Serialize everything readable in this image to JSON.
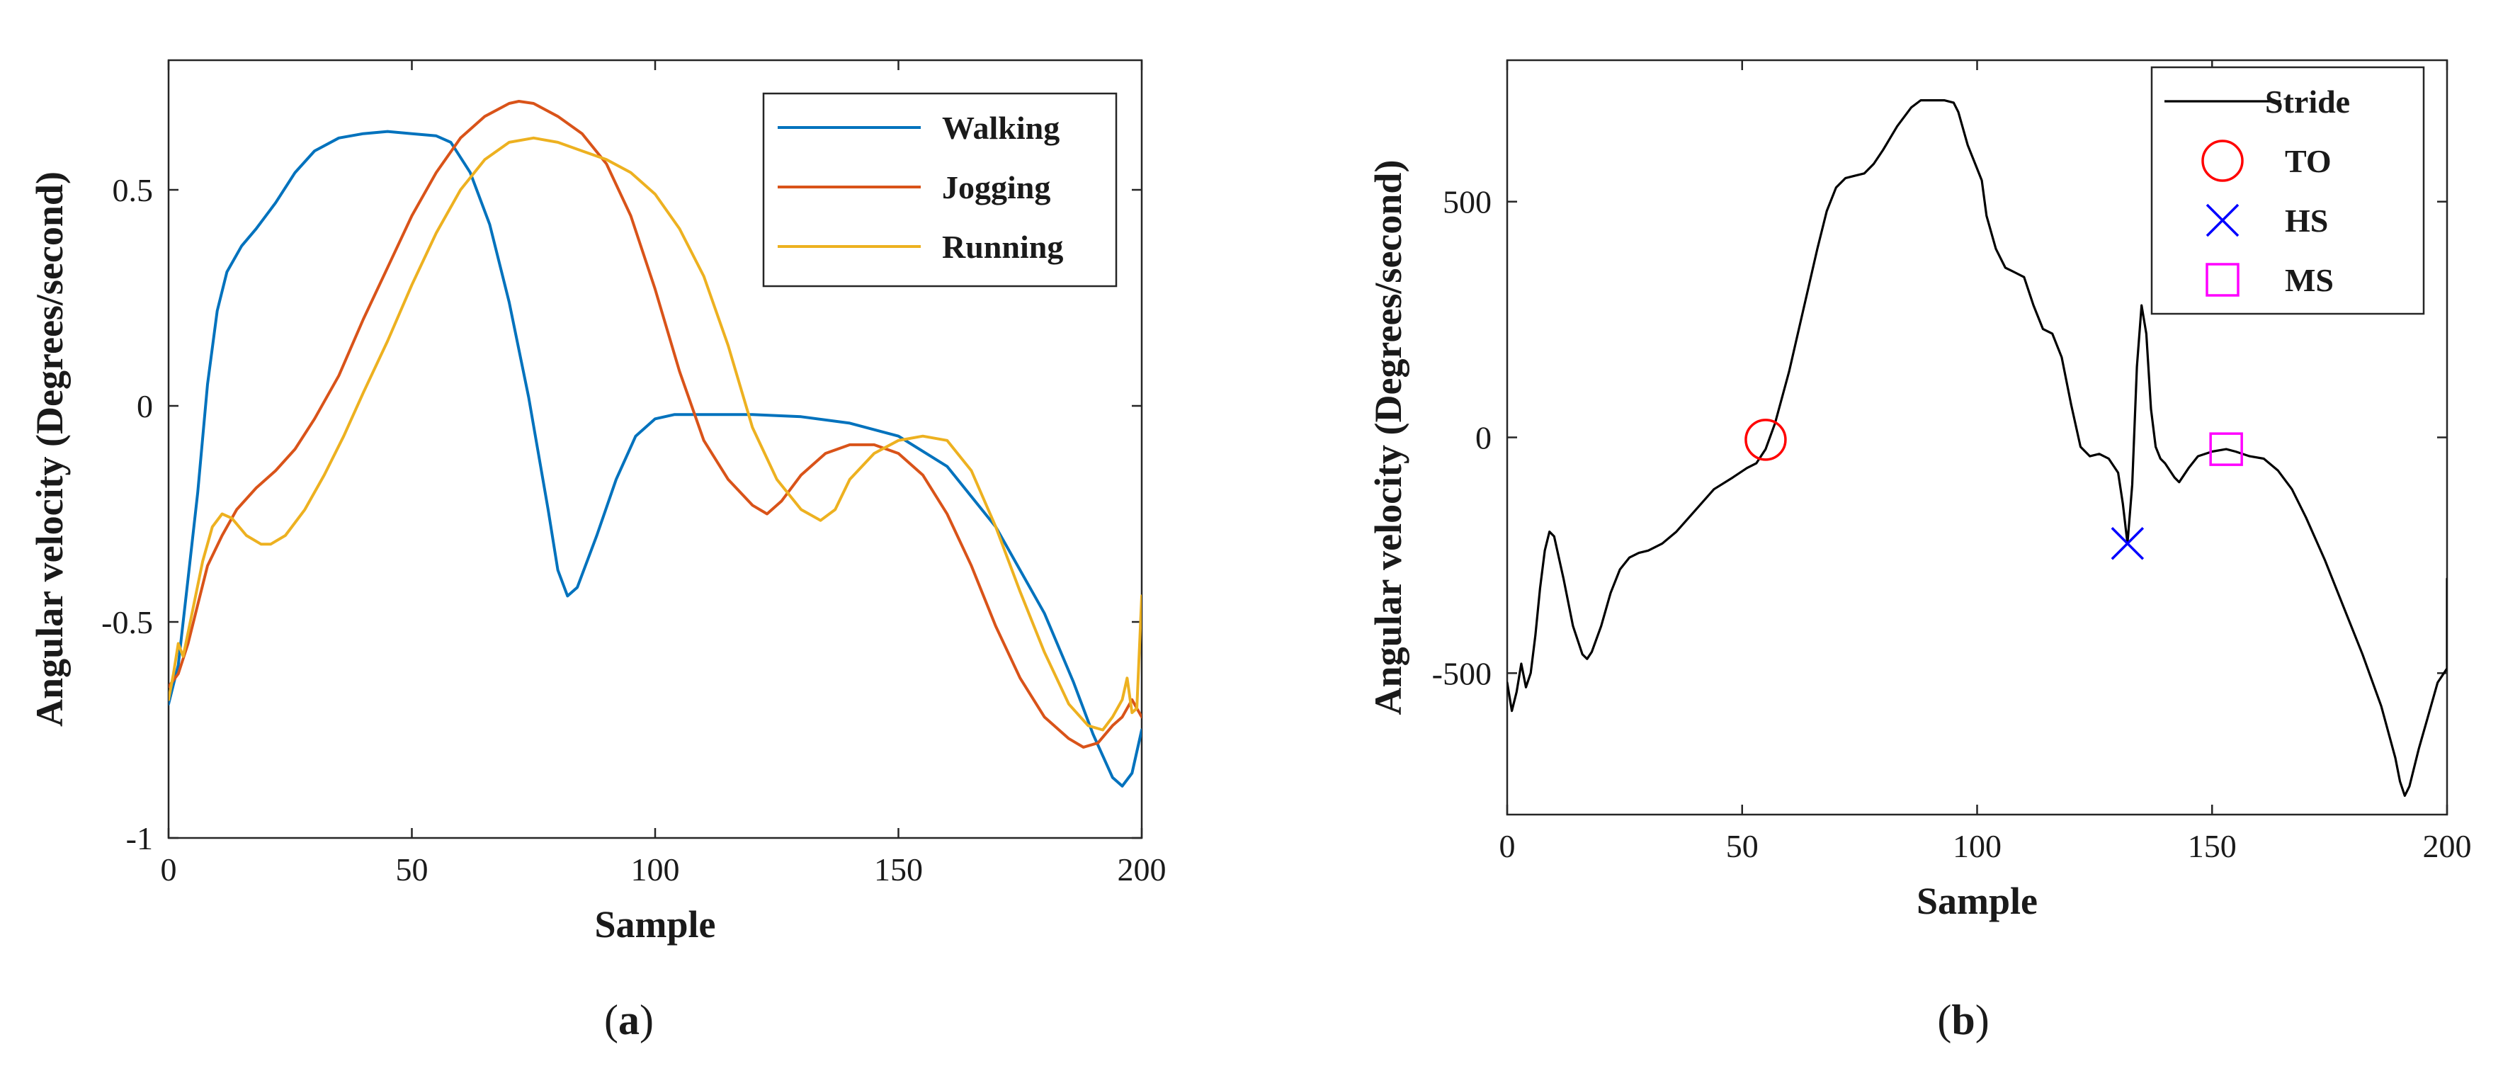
{
  "chart_data": [
    {
      "type": "line",
      "panel_label": "a",
      "title": "",
      "xlabel": "Sample",
      "ylabel": "Angular velocity (Degrees/second)",
      "xlim": [
        0,
        200
      ],
      "ylim": [
        -1,
        0.8
      ],
      "xticks": [
        0,
        50,
        100,
        150,
        200
      ],
      "xtick_labels": [
        "0",
        "50",
        "100",
        "150",
        "200"
      ],
      "yticks": [
        -1,
        -0.5,
        0,
        0.5
      ],
      "ytick_labels": [
        "-1",
        "-0.5",
        "0",
        "0.5"
      ],
      "grid": false,
      "legend_position": "top-right",
      "series": [
        {
          "name": "Walking",
          "color": "#0072bd",
          "points": [
            [
              0,
              -0.69
            ],
            [
              2,
              -0.6
            ],
            [
              4,
              -0.4
            ],
            [
              6,
              -0.2
            ],
            [
              8,
              0.05
            ],
            [
              10,
              0.22
            ],
            [
              12,
              0.31
            ],
            [
              15,
              0.37
            ],
            [
              18,
              0.41
            ],
            [
              22,
              0.47
            ],
            [
              26,
              0.54
            ],
            [
              30,
              0.59
            ],
            [
              35,
              0.62
            ],
            [
              40,
              0.63
            ],
            [
              45,
              0.635
            ],
            [
              50,
              0.63
            ],
            [
              55,
              0.625
            ],
            [
              58,
              0.61
            ],
            [
              62,
              0.54
            ],
            [
              66,
              0.42
            ],
            [
              70,
              0.24
            ],
            [
              74,
              0.02
            ],
            [
              78,
              -0.24
            ],
            [
              80,
              -0.38
            ],
            [
              82,
              -0.44
            ],
            [
              84,
              -0.42
            ],
            [
              88,
              -0.3
            ],
            [
              92,
              -0.17
            ],
            [
              96,
              -0.07
            ],
            [
              100,
              -0.03
            ],
            [
              104,
              -0.02
            ],
            [
              110,
              -0.02
            ],
            [
              120,
              -0.02
            ],
            [
              130,
              -0.025
            ],
            [
              140,
              -0.04
            ],
            [
              150,
              -0.07
            ],
            [
              160,
              -0.14
            ],
            [
              170,
              -0.28
            ],
            [
              180,
              -0.48
            ],
            [
              186,
              -0.64
            ],
            [
              190,
              -0.76
            ],
            [
              194,
              -0.86
            ],
            [
              196,
              -0.88
            ],
            [
              198,
              -0.85
            ],
            [
              200,
              -0.75
            ]
          ]
        },
        {
          "name": "Jogging",
          "color": "#d95319",
          "points": [
            [
              0,
              -0.65
            ],
            [
              2,
              -0.62
            ],
            [
              4,
              -0.55
            ],
            [
              6,
              -0.46
            ],
            [
              8,
              -0.37
            ],
            [
              11,
              -0.3
            ],
            [
              14,
              -0.24
            ],
            [
              18,
              -0.19
            ],
            [
              22,
              -0.15
            ],
            [
              26,
              -0.1
            ],
            [
              30,
              -0.03
            ],
            [
              35,
              0.07
            ],
            [
              40,
              0.2
            ],
            [
              45,
              0.32
            ],
            [
              50,
              0.44
            ],
            [
              55,
              0.54
            ],
            [
              60,
              0.62
            ],
            [
              65,
              0.67
            ],
            [
              70,
              0.7
            ],
            [
              72,
              0.705
            ],
            [
              75,
              0.7
            ],
            [
              80,
              0.67
            ],
            [
              85,
              0.63
            ],
            [
              90,
              0.56
            ],
            [
              95,
              0.44
            ],
            [
              100,
              0.27
            ],
            [
              105,
              0.08
            ],
            [
              110,
              -0.08
            ],
            [
              115,
              -0.17
            ],
            [
              120,
              -0.23
            ],
            [
              123,
              -0.25
            ],
            [
              126,
              -0.22
            ],
            [
              130,
              -0.16
            ],
            [
              135,
              -0.11
            ],
            [
              140,
              -0.09
            ],
            [
              145,
              -0.09
            ],
            [
              150,
              -0.11
            ],
            [
              155,
              -0.16
            ],
            [
              160,
              -0.25
            ],
            [
              165,
              -0.37
            ],
            [
              170,
              -0.51
            ],
            [
              175,
              -0.63
            ],
            [
              180,
              -0.72
            ],
            [
              185,
              -0.77
            ],
            [
              188,
              -0.79
            ],
            [
              191,
              -0.78
            ],
            [
              194,
              -0.74
            ],
            [
              196,
              -0.72
            ],
            [
              198,
              -0.68
            ],
            [
              200,
              -0.72
            ]
          ]
        },
        {
          "name": "Running",
          "color": "#edb120",
          "points": [
            [
              0,
              -0.68
            ],
            [
              1,
              -0.62
            ],
            [
              2,
              -0.55
            ],
            [
              3,
              -0.58
            ],
            [
              5,
              -0.47
            ],
            [
              7,
              -0.36
            ],
            [
              9,
              -0.28
            ],
            [
              11,
              -0.25
            ],
            [
              13,
              -0.26
            ],
            [
              16,
              -0.3
            ],
            [
              19,
              -0.32
            ],
            [
              21,
              -0.32
            ],
            [
              24,
              -0.3
            ],
            [
              28,
              -0.24
            ],
            [
              32,
              -0.16
            ],
            [
              36,
              -0.07
            ],
            [
              40,
              0.03
            ],
            [
              45,
              0.15
            ],
            [
              50,
              0.28
            ],
            [
              55,
              0.4
            ],
            [
              60,
              0.5
            ],
            [
              65,
              0.57
            ],
            [
              70,
              0.61
            ],
            [
              75,
              0.62
            ],
            [
              80,
              0.61
            ],
            [
              85,
              0.59
            ],
            [
              90,
              0.57
            ],
            [
              95,
              0.54
            ],
            [
              100,
              0.49
            ],
            [
              105,
              0.41
            ],
            [
              110,
              0.3
            ],
            [
              115,
              0.14
            ],
            [
              120,
              -0.05
            ],
            [
              125,
              -0.17
            ],
            [
              130,
              -0.24
            ],
            [
              134,
              -0.265
            ],
            [
              137,
              -0.24
            ],
            [
              140,
              -0.17
            ],
            [
              145,
              -0.11
            ],
            [
              150,
              -0.08
            ],
            [
              155,
              -0.07
            ],
            [
              160,
              -0.08
            ],
            [
              165,
              -0.15
            ],
            [
              170,
              -0.28
            ],
            [
              175,
              -0.43
            ],
            [
              180,
              -0.57
            ],
            [
              185,
              -0.69
            ],
            [
              189,
              -0.74
            ],
            [
              192,
              -0.75
            ],
            [
              194,
              -0.72
            ],
            [
              196,
              -0.68
            ],
            [
              197,
              -0.63
            ],
            [
              198,
              -0.71
            ],
            [
              199,
              -0.7
            ],
            [
              200,
              -0.44
            ]
          ]
        }
      ]
    },
    {
      "type": "line",
      "panel_label": "b",
      "title": "",
      "xlabel": "Sample",
      "ylabel": "Angular velocity (Degrees/second)",
      "xlim": [
        0,
        200
      ],
      "ylim": [
        -800,
        800
      ],
      "xticks": [
        0,
        50,
        100,
        150,
        200
      ],
      "xtick_labels": [
        "0",
        "50",
        "100",
        "150",
        "200"
      ],
      "yticks": [
        -500,
        0,
        500
      ],
      "ytick_labels": [
        "-500",
        "0",
        "500"
      ],
      "grid": false,
      "legend_position": "top-right",
      "series": [
        {
          "name": "Stride",
          "color": "#000000",
          "points": [
            [
              0,
              -520
            ],
            [
              1,
              -580
            ],
            [
              2,
              -540
            ],
            [
              3,
              -480
            ],
            [
              4,
              -530
            ],
            [
              5,
              -500
            ],
            [
              6,
              -420
            ],
            [
              7,
              -320
            ],
            [
              8,
              -240
            ],
            [
              9,
              -200
            ],
            [
              10,
              -210
            ],
            [
              12,
              -300
            ],
            [
              14,
              -400
            ],
            [
              16,
              -460
            ],
            [
              17,
              -470
            ],
            [
              18,
              -455
            ],
            [
              20,
              -400
            ],
            [
              22,
              -330
            ],
            [
              24,
              -280
            ],
            [
              26,
              -255
            ],
            [
              28,
              -245
            ],
            [
              30,
              -240
            ],
            [
              33,
              -225
            ],
            [
              36,
              -200
            ],
            [
              40,
              -155
            ],
            [
              44,
              -110
            ],
            [
              48,
              -85
            ],
            [
              51,
              -65
            ],
            [
              53,
              -55
            ],
            [
              55,
              -25
            ],
            [
              57,
              30
            ],
            [
              60,
              140
            ],
            [
              63,
              270
            ],
            [
              66,
              400
            ],
            [
              68,
              480
            ],
            [
              70,
              530
            ],
            [
              72,
              550
            ],
            [
              74,
              555
            ],
            [
              76,
              560
            ],
            [
              78,
              580
            ],
            [
              80,
              610
            ],
            [
              83,
              660
            ],
            [
              86,
              700
            ],
            [
              88,
              715
            ],
            [
              90,
              715
            ],
            [
              93,
              715
            ],
            [
              95,
              710
            ],
            [
              96,
              690
            ],
            [
              98,
              620
            ],
            [
              100,
              570
            ],
            [
              101,
              545
            ],
            [
              102,
              470
            ],
            [
              104,
              400
            ],
            [
              106,
              360
            ],
            [
              108,
              350
            ],
            [
              110,
              340
            ],
            [
              112,
              280
            ],
            [
              114,
              230
            ],
            [
              116,
              220
            ],
            [
              118,
              170
            ],
            [
              120,
              70
            ],
            [
              122,
              -20
            ],
            [
              124,
              -40
            ],
            [
              126,
              -35
            ],
            [
              128,
              -45
            ],
            [
              130,
              -75
            ],
            [
              131,
              -140
            ],
            [
              132,
              -225
            ],
            [
              133,
              -100
            ],
            [
              134,
              150
            ],
            [
              135,
              280
            ],
            [
              136,
              220
            ],
            [
              137,
              60
            ],
            [
              138,
              -20
            ],
            [
              139,
              -45
            ],
            [
              140,
              -55
            ],
            [
              142,
              -85
            ],
            [
              143,
              -95
            ],
            [
              145,
              -65
            ],
            [
              147,
              -40
            ],
            [
              150,
              -30
            ],
            [
              153,
              -25
            ],
            [
              155,
              -30
            ],
            [
              158,
              -40
            ],
            [
              161,
              -45
            ],
            [
              164,
              -70
            ],
            [
              167,
              -110
            ],
            [
              170,
              -170
            ],
            [
              174,
              -260
            ],
            [
              178,
              -360
            ],
            [
              182,
              -460
            ],
            [
              186,
              -570
            ],
            [
              189,
              -680
            ],
            [
              190,
              -730
            ],
            [
              191,
              -760
            ],
            [
              192,
              -740
            ],
            [
              194,
              -660
            ],
            [
              196,
              -590
            ],
            [
              198,
              -520
            ],
            [
              200,
              -490
            ],
            [
              200,
              -300
            ]
          ]
        }
      ],
      "markers": [
        {
          "name": "TO",
          "symbol": "circle",
          "color": "#ff0000",
          "x": 55,
          "y": -5
        },
        {
          "name": "HS",
          "symbol": "x",
          "color": "#0000ff",
          "x": 132,
          "y": -225
        },
        {
          "name": "MS",
          "symbol": "square",
          "color": "#ff00ff",
          "x": 153,
          "y": -25
        }
      ]
    }
  ]
}
